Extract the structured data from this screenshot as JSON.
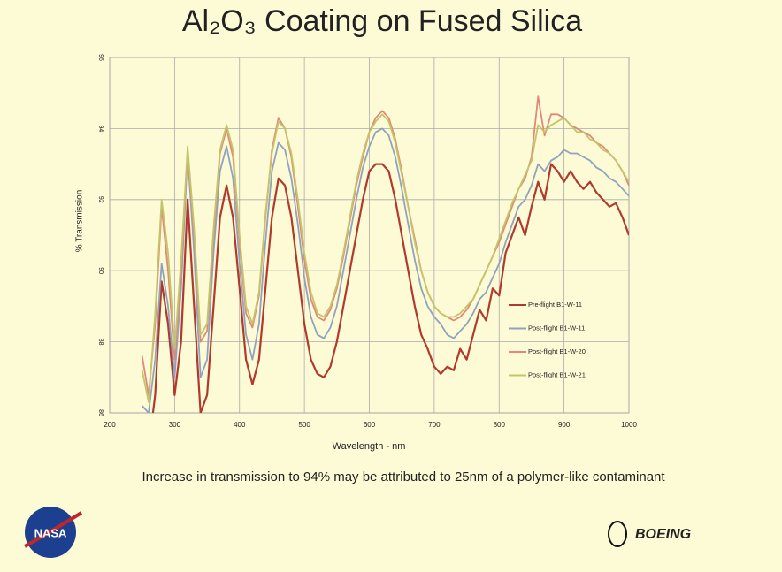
{
  "chart_data": {
    "type": "line",
    "title": "Al₂O₃ Coating on Fused Silica",
    "x_label": "Wavelength - nm",
    "y_label": "% Transmission",
    "x": [
      250,
      260,
      270,
      280,
      290,
      300,
      310,
      320,
      330,
      340,
      350,
      360,
      370,
      380,
      390,
      400,
      410,
      420,
      430,
      440,
      450,
      460,
      470,
      480,
      490,
      500,
      510,
      520,
      530,
      540,
      550,
      560,
      570,
      580,
      590,
      600,
      610,
      620,
      630,
      640,
      650,
      660,
      670,
      680,
      690,
      700,
      710,
      720,
      730,
      740,
      750,
      760,
      770,
      780,
      790,
      800,
      810,
      820,
      830,
      840,
      850,
      860,
      870,
      880,
      890,
      900,
      910,
      920,
      930,
      940,
      950,
      960,
      970,
      980,
      990,
      1000
    ],
    "series": [
      {
        "name": "Pre-flight B1-W-11",
        "color": "#b03a2e",
        "values": [
          85,
          85,
          86.5,
          89.7,
          88.5,
          86.5,
          88,
          92,
          89,
          86,
          86.5,
          89,
          91.5,
          92.4,
          91.5,
          89.5,
          87.5,
          86.8,
          87.5,
          89.5,
          91.5,
          92.6,
          92.4,
          91.5,
          90,
          88.5,
          87.5,
          87.1,
          87,
          87.3,
          88,
          89,
          90,
          91,
          92,
          92.8,
          93,
          93,
          92.8,
          92,
          91,
          90,
          89,
          88.2,
          87.8,
          87.3,
          87.1,
          87.3,
          87.2,
          87.8,
          87.5,
          88.2,
          88.9,
          88.6,
          89.5,
          89.3,
          90.5,
          91,
          91.5,
          91,
          91.8,
          92.5,
          92,
          93,
          92.8,
          92.5,
          92.8,
          92.5,
          92.3,
          92.5,
          92.2,
          92,
          91.8,
          91.9,
          91.5,
          91
        ]
      },
      {
        "name": "Post-flight B1-W-11",
        "color": "#8fa3bf",
        "values": [
          86.2,
          86,
          87.5,
          90.2,
          89,
          87,
          89.5,
          93.3,
          90.5,
          87,
          87.5,
          90.5,
          92.8,
          93.5,
          92.6,
          90.2,
          88.2,
          87.5,
          88.5,
          90.8,
          92.8,
          93.6,
          93.4,
          92.6,
          91.3,
          89.8,
          88.7,
          88.2,
          88.1,
          88.4,
          89,
          90,
          91,
          92,
          92.9,
          93.5,
          93.9,
          94,
          93.8,
          93.2,
          92.3,
          91.3,
          90.3,
          89.5,
          89,
          88.7,
          88.5,
          88.2,
          88.1,
          88.3,
          88.5,
          88.8,
          89.2,
          89.4,
          89.8,
          90.2,
          90.8,
          91.3,
          91.8,
          92,
          92.4,
          93,
          92.8,
          93.1,
          93.2,
          93.4,
          93.3,
          93.3,
          93.2,
          93.1,
          92.9,
          92.8,
          92.6,
          92.5,
          92.3,
          92.1
        ]
      },
      {
        "name": "Post-flight B1-W-20",
        "color": "#e0897a",
        "values": [
          87.6,
          86.5,
          88.5,
          91.8,
          90,
          87.5,
          90,
          93.4,
          91,
          88,
          88.3,
          91,
          93.3,
          94,
          93.2,
          90.8,
          88.8,
          88.4,
          89.3,
          91.5,
          93.4,
          94.3,
          94,
          93.2,
          91.8,
          90.3,
          89.2,
          88.7,
          88.6,
          88.9,
          89.5,
          90.4,
          91.4,
          92.4,
          93.2,
          93.9,
          94.3,
          94.5,
          94.3,
          93.7,
          92.8,
          91.8,
          90.9,
          90,
          89.4,
          89,
          88.8,
          88.7,
          88.6,
          88.7,
          88.9,
          89.2,
          89.6,
          90,
          90.4,
          90.8,
          91.3,
          91.8,
          92.3,
          92.6,
          93.2,
          94.9,
          93.8,
          94.4,
          94.4,
          94.3,
          94.1,
          94,
          93.9,
          93.8,
          93.6,
          93.5,
          93.3,
          93.1,
          92.8,
          92.4
        ]
      },
      {
        "name": "Post-flight B1-W-21",
        "color": "#c4c46a",
        "values": [
          87.2,
          86.3,
          88.8,
          92,
          90.5,
          87.8,
          90.3,
          93.5,
          91.2,
          88.2,
          88.5,
          91.2,
          93.4,
          94.1,
          93.4,
          91,
          89,
          88.5,
          89.4,
          91.6,
          93.3,
          94.2,
          94,
          93.3,
          92,
          90.5,
          89.4,
          88.8,
          88.7,
          89,
          89.6,
          90.5,
          91.5,
          92.5,
          93.3,
          93.9,
          94.2,
          94.4,
          94.2,
          93.6,
          92.7,
          91.8,
          90.8,
          90,
          89.4,
          89,
          88.8,
          88.7,
          88.7,
          88.8,
          89,
          89.2,
          89.6,
          90,
          90.4,
          90.9,
          91.4,
          91.9,
          92.3,
          92.7,
          93.1,
          94.1,
          93.9,
          94.1,
          94.2,
          94.3,
          94.1,
          93.9,
          93.9,
          93.7,
          93.6,
          93.4,
          93.3,
          93.1,
          92.8,
          92.5
        ]
      }
    ],
    "xlim": [
      200,
      1000
    ],
    "xticks": [
      200,
      300,
      400,
      500,
      600,
      700,
      800,
      900,
      1000
    ],
    "ylim": [
      86,
      96
    ],
    "yticks": [
      86,
      88,
      90,
      92,
      94,
      96
    ],
    "grid": true
  },
  "caption": "Increase in transmission to 94% may be attributed to 25nm of a polymer-like contaminant",
  "logos": {
    "nasa": "NASA",
    "boeing": "BOEING"
  }
}
